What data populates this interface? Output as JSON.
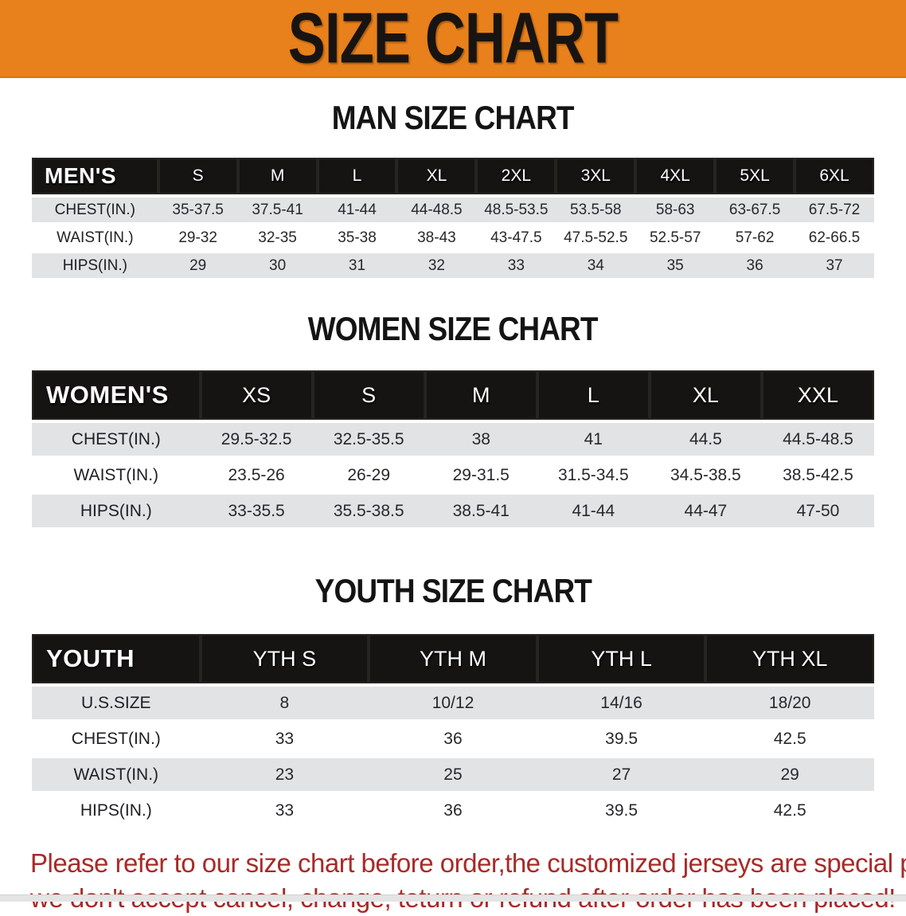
{
  "banner": {
    "title": "SIZE CHART",
    "bg_color": "#E8801B",
    "text_color": "#181412"
  },
  "colors": {
    "table_header_bg": "#151413",
    "row_alt_bg": "#E2E3E5",
    "disclaimer_red": "#A82A28"
  },
  "sections": [
    {
      "heading": "MAN SIZE CHART",
      "table": {
        "group_label": "MEN'S",
        "sizes": [
          "S",
          "M",
          "L",
          "XL",
          "2XL",
          "3XL",
          "4XL",
          "5XL",
          "6XL"
        ],
        "label_col_width": "15%",
        "rows": [
          {
            "label": "CHEST(IN.)",
            "values": [
              "35-37.5",
              "37.5-41",
              "41-44",
              "44-48.5",
              "48.5-53.5",
              "53.5-58",
              "58-63",
              "63-67.5",
              "67.5-72"
            ]
          },
          {
            "label": "WAIST(IN.)",
            "values": [
              "29-32",
              "32-35",
              "35-38",
              "38-43",
              "43-47.5",
              "47.5-52.5",
              "52.5-57",
              "57-62",
              "62-66.5"
            ]
          },
          {
            "label": "HIPS(IN.)",
            "values": [
              "29",
              "30",
              "31",
              "32",
              "33",
              "34",
              "35",
              "36",
              "37"
            ]
          }
        ]
      }
    },
    {
      "heading": "WOMEN SIZE CHART",
      "table": {
        "group_label": "WOMEN'S",
        "sizes": [
          "XS",
          "S",
          "M",
          "L",
          "XL",
          "XXL"
        ],
        "label_col_width": "20%",
        "rows": [
          {
            "label": "CHEST(IN.)",
            "values": [
              "29.5-32.5",
              "32.5-35.5",
              "38",
              "41",
              "44.5",
              "44.5-48.5"
            ]
          },
          {
            "label": "WAIST(IN.)",
            "values": [
              "23.5-26",
              "26-29",
              "29-31.5",
              "31.5-34.5",
              "34.5-38.5",
              "38.5-42.5"
            ]
          },
          {
            "label": "HIPS(IN.)",
            "values": [
              "33-35.5",
              "35.5-38.5",
              "38.5-41",
              "41-44",
              "44-47",
              "47-50"
            ]
          }
        ]
      }
    },
    {
      "heading": "YOUTH SIZE CHART",
      "table": {
        "group_label": "YOUTH",
        "sizes": [
          "YTH S",
          "YTH M",
          "YTH L",
          "YTH XL"
        ],
        "label_col_width": "20%",
        "rows": [
          {
            "label": "U.S.SIZE",
            "values": [
              "8",
              "10/12",
              "14/16",
              "18/20"
            ]
          },
          {
            "label": "CHEST(IN.)",
            "values": [
              "33",
              "36",
              "39.5",
              "42.5"
            ]
          },
          {
            "label": "WAIST(IN.)",
            "values": [
              "23",
              "25",
              "27",
              "29"
            ]
          },
          {
            "label": "HIPS(IN.)",
            "values": [
              "33",
              "36",
              "39.5",
              "42.5"
            ]
          }
        ]
      }
    }
  ],
  "disclaimer": {
    "line1": "Please refer to our size chart before order,the customized jerseys are special products,",
    "line2": "we don't accept cancel, change, teturn or refund after order has been placed!"
  }
}
